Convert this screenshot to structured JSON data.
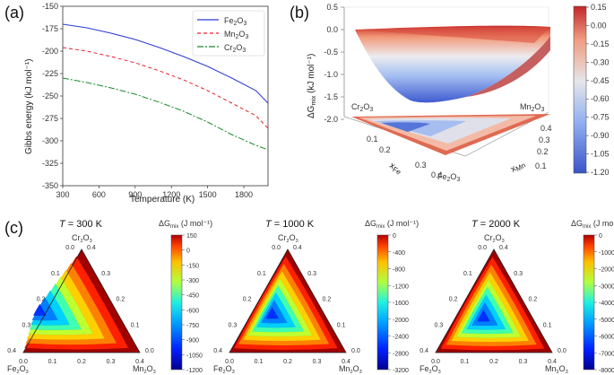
{
  "panel_labels": {
    "a": "(a)",
    "b": "(b)",
    "c": "(c)"
  },
  "chart_data": [
    {
      "type": "line",
      "panel": "(a)",
      "xlabel": "Temperature (K)",
      "ylabel": "Gibbs energy  (kJ mol⁻¹)",
      "xlim": [
        300,
        2000
      ],
      "ylim": [
        -350,
        -150
      ],
      "xticks": [
        "300",
        "600",
        "900",
        "1200",
        "1500",
        "1800"
      ],
      "yticks": [
        "-150",
        "-175",
        "-200",
        "-225",
        "-250",
        "-275",
        "-300",
        "-325",
        "-350"
      ],
      "series": [
        {
          "name": "Fe2O3",
          "label_main": "Fe",
          "label_sub1": "2",
          "label_mid": "O",
          "label_sub2": "3",
          "color": "#2b3bd6",
          "dash": "",
          "x": [
            300,
            500,
            700,
            900,
            1100,
            1300,
            1500,
            1700,
            1900,
            2000
          ],
          "y": [
            -170,
            -174,
            -180,
            -187,
            -196,
            -206,
            -217,
            -230,
            -244,
            -258
          ]
        },
        {
          "name": "Mn2O3",
          "label_main": "Mn",
          "label_sub1": "2",
          "label_mid": "O",
          "label_sub2": "3",
          "color": "#e8202a",
          "dash": "4,3",
          "x": [
            300,
            500,
            700,
            900,
            1100,
            1300,
            1500,
            1700,
            1900,
            2000
          ],
          "y": [
            -196,
            -200,
            -206,
            -213,
            -222,
            -232,
            -244,
            -258,
            -272,
            -286
          ]
        },
        {
          "name": "Cr2O3",
          "label_main": "Cr",
          "label_sub1": "2",
          "label_mid": "O",
          "label_sub2": "3",
          "color": "#1a8a2a",
          "dash": "7,2,2,2",
          "x": [
            300,
            500,
            700,
            900,
            1100,
            1300,
            1500,
            1700,
            1900,
            2000
          ],
          "y": [
            -230,
            -235,
            -241,
            -248,
            -257,
            -267,
            -279,
            -293,
            -305,
            -310
          ]
        }
      ],
      "legend": "top-right"
    },
    {
      "type": "surface3d",
      "panel": "(b)",
      "zlabel": "ΔG",
      "zlabel_sub": "mix",
      "zlabel_unit": " (kJ mol⁻¹)",
      "zticks": [
        "0.5",
        "0.0",
        "-0.5",
        "-1.0",
        "-1.5",
        "-2.0"
      ],
      "corner_labels": {
        "cr": "Cr2O3",
        "mn": "Mn2O3",
        "fe": "Fe2O3"
      },
      "x_fe_label": "x",
      "x_fe_sub": "Fe",
      "x_mn_label": "x",
      "x_mn_sub": "Mn",
      "fe_ticks": [
        "0.1",
        "0.2",
        "0.3",
        "0.4"
      ],
      "mn_ticks": [
        "0.1",
        "0.2",
        "0.3",
        "0.4"
      ],
      "colorbar": {
        "ticks": [
          "0.15",
          "0.00",
          "-0.15",
          "-0.30",
          "-0.45",
          "-0.60",
          "-0.75",
          "-0.90",
          "-1.05",
          "-1.20"
        ],
        "range": [
          -1.2,
          0.15
        ]
      }
    },
    {
      "type": "ternary_contour",
      "panel": "(c)",
      "plots": [
        {
          "title_T": "T",
          "title_val": " = 300 K",
          "cbar_ticks": [
            "150",
            "0",
            "-150",
            "-300",
            "-450",
            "-600",
            "-750",
            "-900",
            "-1050",
            "-1200"
          ],
          "min_pos": [
            0.05,
            0.25
          ]
        },
        {
          "title_T": "T",
          "title_val": " = 1000 K",
          "cbar_ticks": [
            "0",
            "-400",
            "-800",
            "-1200",
            "-1600",
            "-2000",
            "-2400",
            "-2800",
            "-3200"
          ],
          "min_pos": [
            0.15,
            0.18
          ]
        },
        {
          "title_T": "T",
          "title_val": " = 2000 K",
          "cbar_ticks": [
            "0",
            "-1000",
            "-2000",
            "-3000",
            "-4000",
            "-5000",
            "-6000",
            "-7000",
            "-8000"
          ],
          "min_pos": [
            0.2,
            0.12
          ]
        }
      ],
      "cbar_label": "ΔG",
      "cbar_label_sub": "mix",
      "cbar_label_unit": " (J mol⁻¹)",
      "corners": {
        "top": "Cr2O3",
        "left": "Fe2O3",
        "right": "Mn2O3"
      },
      "bottom_ticks": [
        "0.0",
        "0.1",
        "0.2",
        "0.3",
        "0.4"
      ],
      "left_ticks": [
        "0.0",
        "0.1",
        "0.2",
        "0.3",
        "0.4"
      ],
      "right_ticks": [
        "0.4",
        "0.3",
        "0.2",
        "0.1",
        "0.0"
      ]
    }
  ]
}
